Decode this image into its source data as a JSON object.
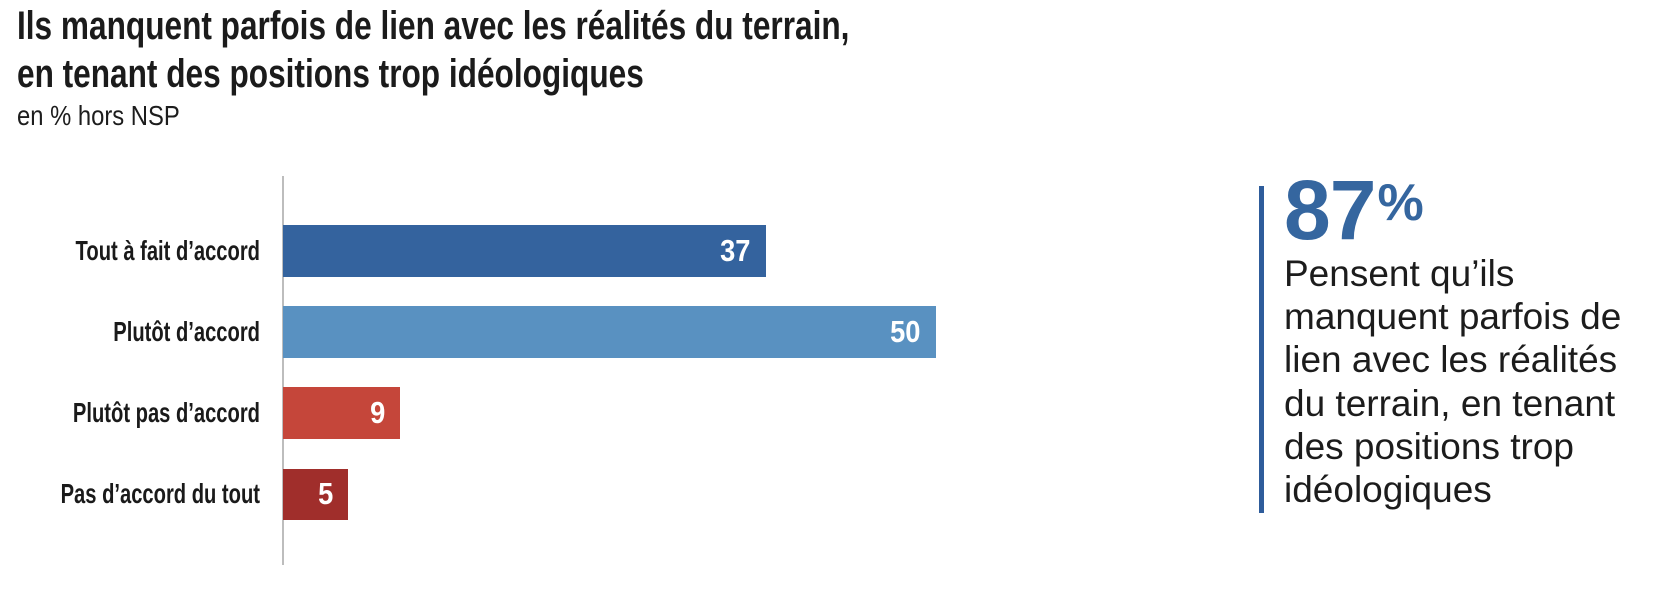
{
  "header": {
    "title": "Ils manquent parfois de lien avec les réalités du terrain,\nen tenant des positions trop idéologiques",
    "subtitle": "en % hors NSP"
  },
  "chart_data": {
    "type": "bar",
    "orientation": "horizontal",
    "title": "Ils manquent parfois de lien avec les réalités du terrain, en tenant des positions trop idéologiques",
    "subtitle": "en % hors NSP",
    "unit": "% hors NSP",
    "categories": [
      "Tout à fait d’accord",
      "Plutôt d’accord",
      "Plutôt pas d’accord",
      "Pas d’accord du tout"
    ],
    "values": [
      37,
      50,
      9,
      5
    ],
    "value_labels": [
      "37",
      "50",
      "9",
      "5"
    ],
    "bar_colors": [
      "#34639e",
      "#5991c1",
      "#c5463a",
      "#a02e2b"
    ],
    "value_label_color": "#ffffff",
    "value_label_position": "inside-right",
    "axis_line_color": "#bdbdbd",
    "xlabel": "",
    "ylabel": "",
    "xlim": [
      0,
      100
    ],
    "grid": false,
    "legend": false
  },
  "callout": {
    "value": "87",
    "unit": "%",
    "text": "Pensent qu’ils\nmanquent parfois de\nlien avec les réalités\ndu terrain, en tenant\ndes positions trop\nidéologiques",
    "accent_color": "#2e5c9b",
    "value_color": "#35669f"
  }
}
